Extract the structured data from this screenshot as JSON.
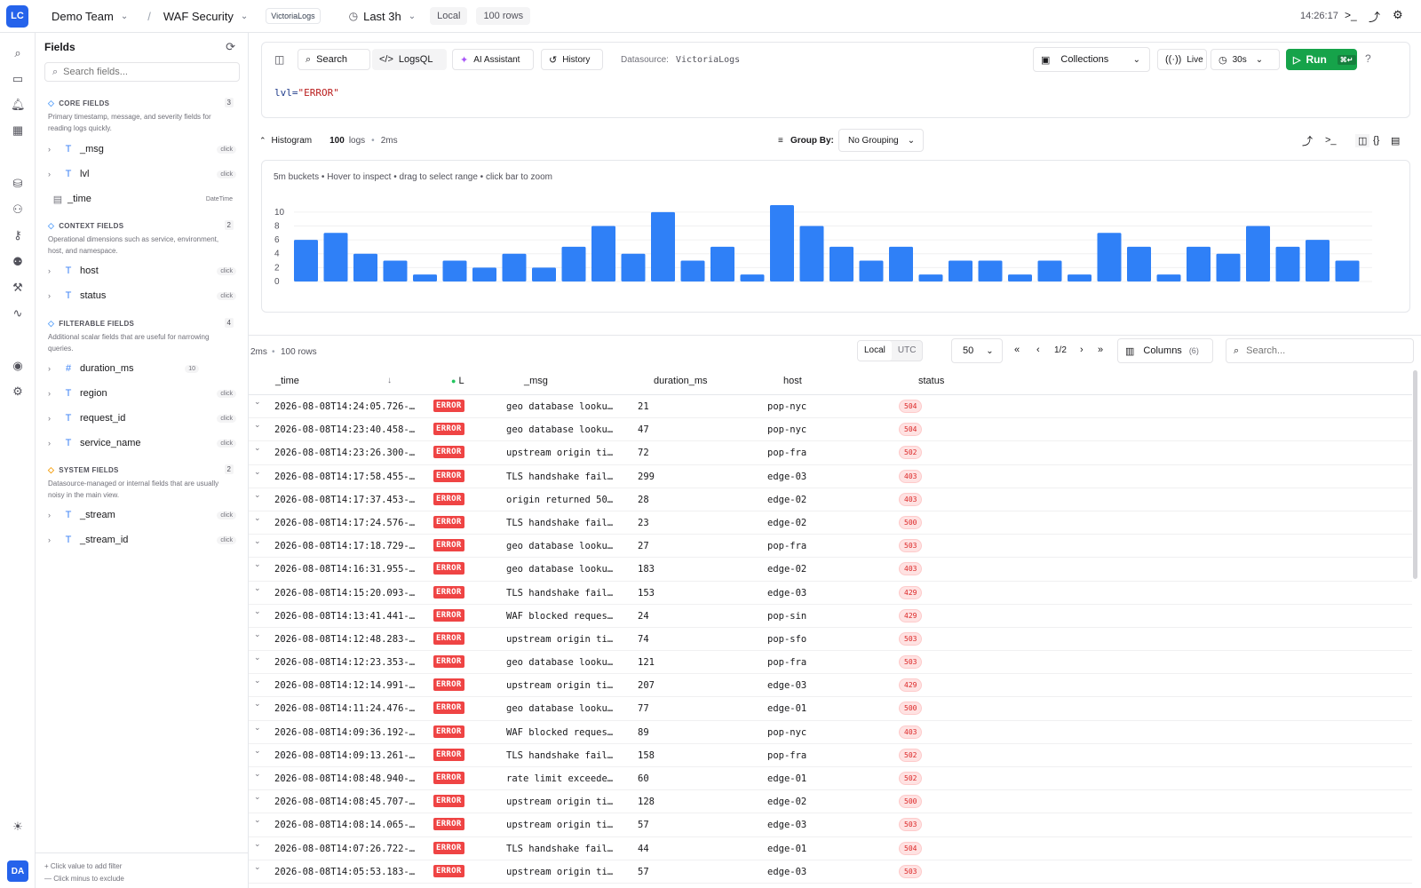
{
  "topbar": {
    "logo": "LC",
    "team": "Demo Team",
    "separator": "/",
    "project": "WAF Security",
    "datasource_badge": "VictoriaLogs",
    "time_range": "Last 3h",
    "timezone": "Local",
    "row_limit": "100 rows",
    "clock": "14:26:17"
  },
  "fields_panel": {
    "title": "Fields",
    "search_placeholder": "Search fields...",
    "sections": {
      "core": {
        "title": "CORE FIELDS",
        "count": "3",
        "description": "Primary timestamp, message, and severity fields for reading logs quickly."
      },
      "context": {
        "title": "CONTEXT FIELDS",
        "count": "2",
        "description": "Operational dimensions such as service, environment, host, and namespace."
      },
      "filterable": {
        "title": "FILTERABLE FIELDS",
        "count": "4",
        "description": "Additional scalar fields that are useful for narrowing queries."
      },
      "system": {
        "title": "SYSTEM FIELDS",
        "count": "2",
        "description": "Datasource-managed or internal fields that are usually noisy in the main view."
      }
    },
    "fields": {
      "msg": {
        "name": "_msg",
        "hint": "click"
      },
      "lvl": {
        "name": "lvl",
        "hint": "click"
      },
      "time": {
        "name": "_time",
        "hint": "DateTime"
      },
      "host": {
        "name": "host",
        "hint": "click"
      },
      "status": {
        "name": "status",
        "hint": "click"
      },
      "duration_ms": {
        "name": "duration_ms",
        "hint": "10"
      },
      "region": {
        "name": "region",
        "hint": "click"
      },
      "request_id": {
        "name": "request_id",
        "hint": "click"
      },
      "service_name": {
        "name": "service_name",
        "hint": "click"
      },
      "stream": {
        "name": "_stream",
        "hint": "click"
      },
      "stream_id": {
        "name": "_stream_id",
        "hint": "click"
      }
    },
    "footer_add": "Click value to add filter",
    "footer_exclude": "Click minus to exclude"
  },
  "query": {
    "tab_search": "Search",
    "tab_logsql": "LogsQL",
    "ai_assistant": "AI Assistant",
    "history": "History",
    "datasource_label": "Datasource:",
    "datasource_value": "VictoriaLogs",
    "collections": "Collections",
    "live": "Live",
    "refresh_interval": "30s",
    "run": "Run",
    "text_key": "lvl=",
    "text_value": "\"ERROR\""
  },
  "histogram": {
    "label": "Histogram",
    "count": "100",
    "count_unit": "logs",
    "separator": "•",
    "duration": "2ms",
    "group_by_label": "Group By:",
    "group_by_value": "No Grouping",
    "hint": "5m buckets • Hover to inspect • drag to select range • click bar to zoom"
  },
  "chart_data": {
    "type": "bar",
    "values": [
      6,
      7,
      4,
      3,
      1,
      3,
      2,
      4,
      2,
      5,
      8,
      4,
      10,
      3,
      5,
      1,
      11,
      8,
      5,
      3,
      5,
      1,
      3,
      3,
      1,
      3,
      1,
      7,
      5,
      1,
      5,
      4,
      8,
      5,
      6,
      3
    ],
    "yticks": [
      "0",
      "2",
      "4",
      "6",
      "8",
      "10"
    ],
    "ylim": [
      0,
      11
    ],
    "grid": true,
    "bar_color": "#2f80f7"
  },
  "table_toolbar": {
    "duration": "2ms",
    "separator": "•",
    "rows": "100 rows",
    "tz_local": "Local",
    "tz_utc": "UTC",
    "page_size": "50",
    "page": "1/2",
    "columns_label": "Columns",
    "columns_count": "(6)",
    "search_placeholder": "Search..."
  },
  "table": {
    "headers": {
      "time": "_time",
      "level": "L",
      "msg": "_msg",
      "duration": "duration_ms",
      "host": "host",
      "status": "status"
    },
    "rows": [
      {
        "time": "2026-08-08T14:24:05.726-…",
        "level": "ERROR",
        "msg": "geo database looku…",
        "duration": "21",
        "host": "pop-nyc",
        "status": "504"
      },
      {
        "time": "2026-08-08T14:23:40.458-…",
        "level": "ERROR",
        "msg": "geo database looku…",
        "duration": "47",
        "host": "pop-nyc",
        "status": "504"
      },
      {
        "time": "2026-08-08T14:23:26.300-…",
        "level": "ERROR",
        "msg": "upstream origin ti…",
        "duration": "72",
        "host": "pop-fra",
        "status": "502"
      },
      {
        "time": "2026-08-08T14:17:58.455-…",
        "level": "ERROR",
        "msg": "TLS handshake fail…",
        "duration": "299",
        "host": "edge-03",
        "status": "403"
      },
      {
        "time": "2026-08-08T14:17:37.453-…",
        "level": "ERROR",
        "msg": "origin returned 50…",
        "duration": "28",
        "host": "edge-02",
        "status": "403"
      },
      {
        "time": "2026-08-08T14:17:24.576-…",
        "level": "ERROR",
        "msg": "TLS handshake fail…",
        "duration": "23",
        "host": "edge-02",
        "status": "500"
      },
      {
        "time": "2026-08-08T14:17:18.729-…",
        "level": "ERROR",
        "msg": "geo database looku…",
        "duration": "27",
        "host": "pop-fra",
        "status": "503"
      },
      {
        "time": "2026-08-08T14:16:31.955-…",
        "level": "ERROR",
        "msg": "geo database looku…",
        "duration": "183",
        "host": "edge-02",
        "status": "403"
      },
      {
        "time": "2026-08-08T14:15:20.093-…",
        "level": "ERROR",
        "msg": "TLS handshake fail…",
        "duration": "153",
        "host": "edge-03",
        "status": "429"
      },
      {
        "time": "2026-08-08T14:13:41.441-…",
        "level": "ERROR",
        "msg": "WAF blocked reques…",
        "duration": "24",
        "host": "pop-sin",
        "status": "429"
      },
      {
        "time": "2026-08-08T14:12:48.283-…",
        "level": "ERROR",
        "msg": "upstream origin ti…",
        "duration": "74",
        "host": "pop-sfo",
        "status": "503"
      },
      {
        "time": "2026-08-08T14:12:23.353-…",
        "level": "ERROR",
        "msg": "geo database looku…",
        "duration": "121",
        "host": "pop-fra",
        "status": "503"
      },
      {
        "time": "2026-08-08T14:12:14.991-…",
        "level": "ERROR",
        "msg": "upstream origin ti…",
        "duration": "207",
        "host": "edge-03",
        "status": "429"
      },
      {
        "time": "2026-08-08T14:11:24.476-…",
        "level": "ERROR",
        "msg": "geo database looku…",
        "duration": "77",
        "host": "edge-01",
        "status": "500"
      },
      {
        "time": "2026-08-08T14:09:36.192-…",
        "level": "ERROR",
        "msg": "WAF blocked reques…",
        "duration": "89",
        "host": "pop-nyc",
        "status": "403"
      },
      {
        "time": "2026-08-08T14:09:13.261-…",
        "level": "ERROR",
        "msg": "TLS handshake fail…",
        "duration": "158",
        "host": "pop-fra",
        "status": "502"
      },
      {
        "time": "2026-08-08T14:08:48.940-…",
        "level": "ERROR",
        "msg": "rate limit exceede…",
        "duration": "60",
        "host": "edge-01",
        "status": "502"
      },
      {
        "time": "2026-08-08T14:08:45.707-…",
        "level": "ERROR",
        "msg": "upstream origin ti…",
        "duration": "128",
        "host": "edge-02",
        "status": "500"
      },
      {
        "time": "2026-08-08T14:08:14.065-…",
        "level": "ERROR",
        "msg": "upstream origin ti…",
        "duration": "57",
        "host": "edge-03",
        "status": "503"
      },
      {
        "time": "2026-08-08T14:07:26.722-…",
        "level": "ERROR",
        "msg": "TLS handshake fail…",
        "duration": "44",
        "host": "edge-01",
        "status": "504"
      },
      {
        "time": "2026-08-08T14:05:53.183-…",
        "level": "ERROR",
        "msg": "upstream origin ti…",
        "duration": "57",
        "host": "edge-03",
        "status": "503"
      }
    ]
  },
  "user_avatar": "DA",
  "icons": {
    "rail": [
      "search-icon",
      "folder-icon",
      "bell-icon",
      "dashboard-icon",
      "database-icon",
      "users-icon",
      "key-icon",
      "team-icon",
      "wrench-icon",
      "activity-icon",
      "account-icon",
      "settings-icon",
      "theme-icon"
    ],
    "topbar": [
      "terminal-icon",
      "share-icon",
      "gear-icon"
    ]
  }
}
